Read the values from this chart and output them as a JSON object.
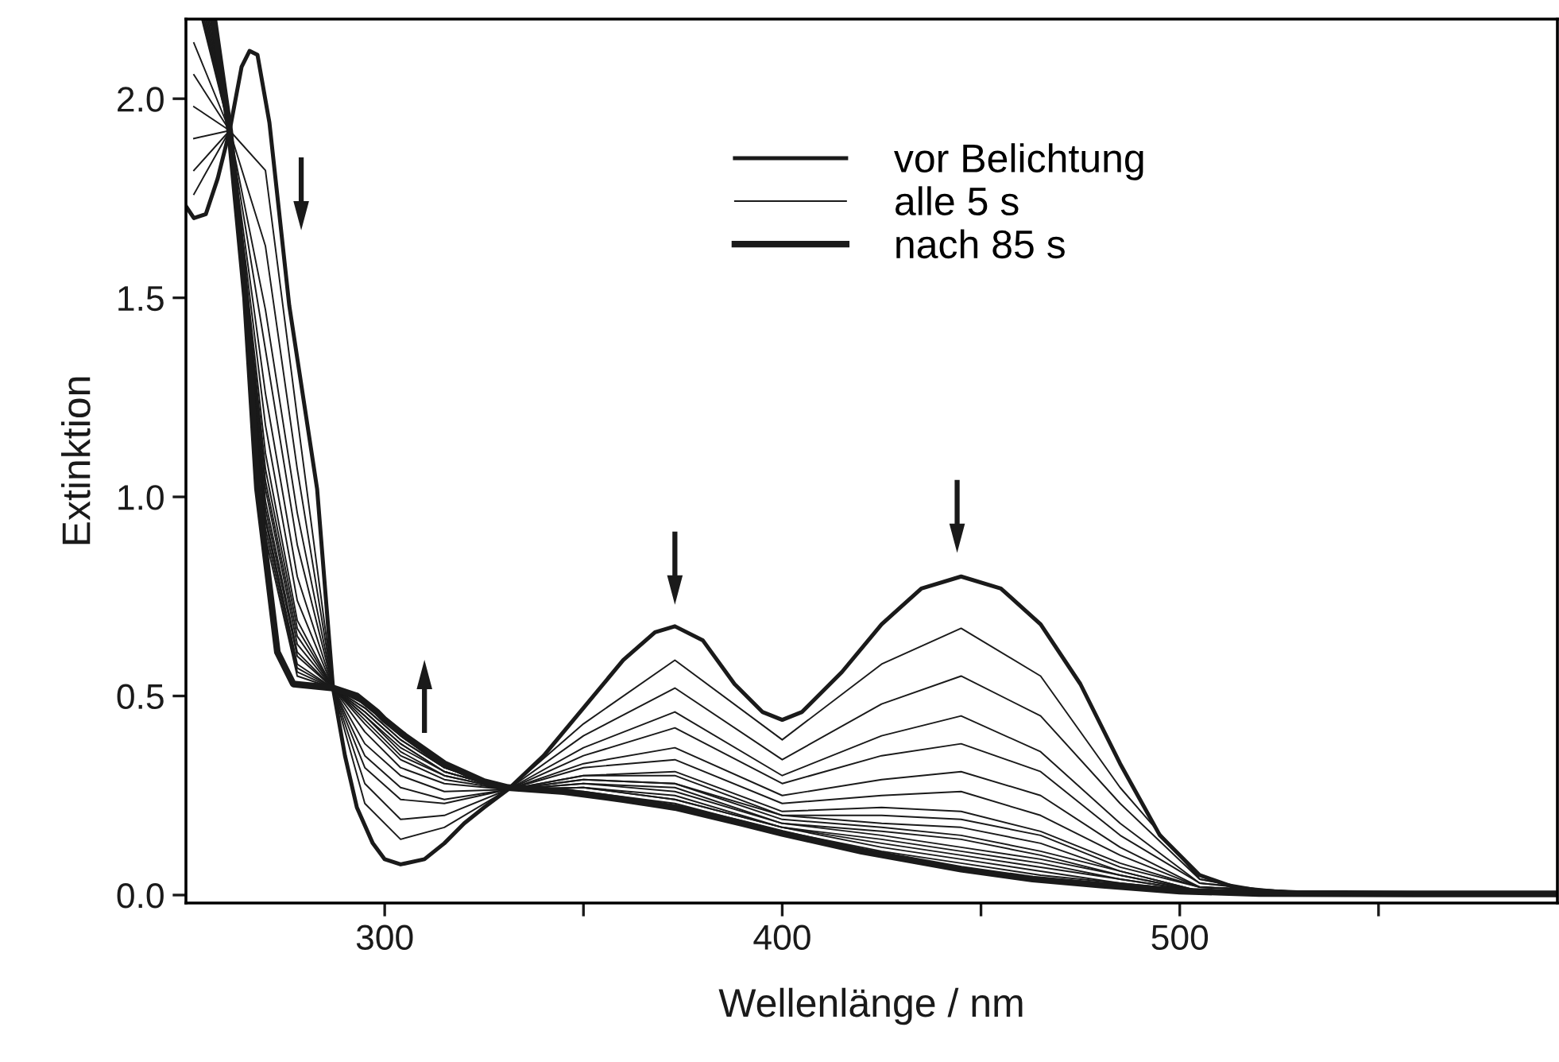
{
  "chart_data": {
    "type": "line",
    "xlabel": "Wellenlänge / nm",
    "ylabel": "Extinktion",
    "xlim": [
      250,
      595
    ],
    "ylim": [
      -0.02,
      2.2
    ],
    "xticks": [
      300,
      {
        "value": 350,
        "label": null
      },
      400,
      {
        "value": 450,
        "label": null
      },
      500,
      {
        "value": 550,
        "label": null
      }
    ],
    "yticks": [
      {
        "value": 0,
        "label": "0.0"
      },
      0.5,
      {
        "value": 1,
        "label": "1.0"
      },
      1.5,
      {
        "value": 2,
        "label": "2.0"
      }
    ],
    "grid": false,
    "legend": "top",
    "marker": "none",
    "line_style": "solid",
    "series": [
      {
        "name": "vor Belichtung",
        "color": "#1a1a1a",
        "x": [
          250,
          252,
          255,
          258,
          261,
          264,
          266,
          268,
          271,
          276,
          283,
          287,
          290,
          293,
          297,
          300,
          304,
          310,
          315,
          320,
          325,
          331,
          340,
          350,
          360,
          368,
          373,
          380,
          388,
          395,
          400,
          405,
          415,
          425,
          435,
          445,
          455,
          465,
          475,
          485,
          495,
          505,
          515,
          530,
          560,
          595
        ],
        "values": [
          1.73,
          1.7,
          1.71,
          1.8,
          1.92,
          2.08,
          2.12,
          2.11,
          1.94,
          1.48,
          1.02,
          0.52,
          0.35,
          0.22,
          0.13,
          0.09,
          0.077,
          0.09,
          0.13,
          0.18,
          0.22,
          0.265,
          0.35,
          0.47,
          0.59,
          0.66,
          0.675,
          0.64,
          0.53,
          0.46,
          0.44,
          0.46,
          0.56,
          0.68,
          0.77,
          0.8,
          0.77,
          0.68,
          0.53,
          0.33,
          0.15,
          0.05,
          0.015,
          0.005,
          0.003,
          0.003
        ]
      },
      {
        "name": "alle 5 s",
        "color": "#1a1a1a",
        "x": [
          252,
          261,
          270,
          278,
          287,
          295,
          304,
          315,
          331,
          350,
          373,
          400,
          425,
          445,
          465,
          485,
          505,
          523
        ],
        "values": [
          1.76,
          1.92,
          1.82,
          1.2,
          0.52,
          0.23,
          0.14,
          0.17,
          0.265,
          0.43,
          0.59,
          0.39,
          0.58,
          0.67,
          0.55,
          0.27,
          0.04,
          0.004
        ]
      },
      {
        "color": "#1a1a1a",
        "x": [
          252,
          261,
          270,
          278,
          287,
          295,
          304,
          315,
          331,
          350,
          373,
          400,
          425,
          445,
          465,
          485,
          505,
          526
        ],
        "values": [
          1.82,
          1.92,
          1.63,
          1.07,
          0.52,
          0.28,
          0.19,
          0.2,
          0.265,
          0.4,
          0.52,
          0.34,
          0.48,
          0.55,
          0.45,
          0.23,
          0.04,
          0.004
        ]
      },
      {
        "color": "#1a1a1a",
        "x": [
          252,
          261,
          270,
          278,
          287,
          295,
          304,
          315,
          331,
          350,
          373,
          400,
          425,
          445,
          465,
          485,
          505,
          529
        ],
        "values": [
          1.9,
          1.92,
          1.47,
          0.96,
          0.52,
          0.32,
          0.24,
          0.23,
          0.265,
          0.37,
          0.46,
          0.3,
          0.4,
          0.45,
          0.36,
          0.18,
          0.03,
          0.004
        ]
      },
      {
        "color": "#1a1a1a",
        "x": [
          252,
          261,
          270,
          278,
          287,
          295,
          304,
          315,
          331,
          350,
          373,
          400,
          425,
          445,
          465,
          485,
          505,
          532
        ],
        "values": [
          1.98,
          1.92,
          1.37,
          0.88,
          0.52,
          0.35,
          0.27,
          0.24,
          0.265,
          0.35,
          0.42,
          0.28,
          0.35,
          0.38,
          0.31,
          0.15,
          0.03,
          0.004
        ]
      },
      {
        "color": "#1a1a1a",
        "x": [
          252,
          261,
          270,
          278,
          287,
          295,
          304,
          315,
          331,
          350,
          373,
          400,
          425,
          445,
          465,
          485,
          505,
          535
        ],
        "values": [
          2.06,
          1.92,
          1.26,
          0.8,
          0.52,
          0.38,
          0.3,
          0.26,
          0.265,
          0.33,
          0.37,
          0.25,
          0.29,
          0.31,
          0.25,
          0.12,
          0.02,
          0.004
        ]
      },
      {
        "color": "#1a1a1a",
        "x": [
          252,
          261,
          270,
          278,
          287,
          295,
          304,
          315,
          331,
          350,
          373,
          400,
          425,
          445,
          465,
          485,
          505,
          538
        ],
        "values": [
          2.14,
          1.92,
          1.18,
          0.74,
          0.52,
          0.41,
          0.32,
          0.28,
          0.265,
          0.32,
          0.34,
          0.23,
          0.25,
          0.26,
          0.2,
          0.1,
          0.02,
          0.004
        ]
      },
      {
        "color": "#1a1a1a",
        "x": [
          254.0,
          261,
          270,
          278,
          287,
          295,
          304,
          315,
          331,
          350,
          373,
          400,
          425,
          445,
          465,
          485,
          505,
          541
        ],
        "values": [
          2.2,
          1.92,
          1.11,
          0.69,
          0.52,
          0.43,
          0.34,
          0.29,
          0.265,
          0.3,
          0.31,
          0.21,
          0.22,
          0.21,
          0.16,
          0.08,
          0.02,
          0.004
        ]
      },
      {
        "color": "#1a1a1a",
        "x": [
          254.3,
          261,
          270,
          278,
          287,
          295,
          304,
          315,
          331,
          350,
          373,
          400,
          425,
          445,
          465,
          485,
          505,
          544
        ],
        "values": [
          2.2,
          1.92,
          1.07,
          0.67,
          0.52,
          0.44,
          0.35,
          0.3,
          0.265,
          0.3,
          0.3,
          0.2,
          0.2,
          0.19,
          0.15,
          0.07,
          0.02,
          0.004
        ]
      },
      {
        "color": "#1a1a1a",
        "x": [
          254.6,
          261,
          270,
          278,
          287,
          295,
          304,
          315,
          331,
          350,
          373,
          400,
          425,
          445,
          465,
          485,
          505,
          547
        ],
        "values": [
          2.2,
          1.92,
          1.04,
          0.65,
          0.52,
          0.45,
          0.36,
          0.3,
          0.265,
          0.29,
          0.28,
          0.2,
          0.18,
          0.17,
          0.13,
          0.06,
          0.01,
          0.004
        ]
      },
      {
        "color": "#1a1a1a",
        "x": [
          254.9,
          261,
          270,
          278,
          287,
          295,
          304,
          315,
          331,
          350,
          373,
          400,
          425,
          445,
          465,
          485,
          505,
          550
        ],
        "values": [
          2.2,
          1.92,
          1.02,
          0.63,
          0.52,
          0.45,
          0.37,
          0.31,
          0.265,
          0.29,
          0.28,
          0.19,
          0.17,
          0.15,
          0.11,
          0.06,
          0.01,
          0.004
        ]
      },
      {
        "color": "#1a1a1a",
        "x": [
          255.2,
          261,
          270,
          278,
          287,
          295,
          304,
          315,
          331,
          350,
          373,
          400,
          425,
          445,
          465,
          485,
          505,
          553
        ],
        "values": [
          2.2,
          1.92,
          0.99,
          0.61,
          0.52,
          0.46,
          0.38,
          0.31,
          0.265,
          0.28,
          0.27,
          0.18,
          0.16,
          0.14,
          0.1,
          0.05,
          0.01,
          0.004
        ]
      },
      {
        "color": "#1a1a1a",
        "x": [
          255.5,
          261,
          270,
          278,
          287,
          295,
          304,
          315,
          331,
          350,
          373,
          400,
          425,
          445,
          465,
          485,
          505,
          556
        ],
        "values": [
          2.2,
          1.92,
          0.97,
          0.6,
          0.52,
          0.46,
          0.38,
          0.31,
          0.265,
          0.28,
          0.26,
          0.18,
          0.15,
          0.12,
          0.09,
          0.05,
          0.01,
          0.004
        ]
      },
      {
        "color": "#1a1a1a",
        "x": [
          255.8,
          261,
          270,
          278,
          287,
          295,
          304,
          315,
          331,
          350,
          373,
          400,
          425,
          445,
          465,
          485,
          505,
          559
        ],
        "values": [
          2.2,
          1.92,
          0.95,
          0.58,
          0.52,
          0.47,
          0.39,
          0.32,
          0.265,
          0.27,
          0.25,
          0.17,
          0.14,
          0.11,
          0.08,
          0.04,
          0.01,
          0.004
        ]
      },
      {
        "color": "#1a1a1a",
        "x": [
          256.1,
          261,
          270,
          278,
          287,
          295,
          304,
          315,
          331,
          350,
          373,
          400,
          425,
          445,
          465,
          485,
          505,
          562
        ],
        "values": [
          2.2,
          1.92,
          0.94,
          0.57,
          0.52,
          0.47,
          0.39,
          0.32,
          0.265,
          0.27,
          0.24,
          0.17,
          0.13,
          0.1,
          0.07,
          0.04,
          0.01,
          0.004
        ]
      },
      {
        "color": "#1a1a1a",
        "x": [
          256.4,
          261,
          270,
          278,
          287,
          295,
          304,
          315,
          331,
          350,
          373,
          400,
          425,
          445,
          465,
          485,
          505,
          565
        ],
        "values": [
          2.2,
          1.92,
          0.92,
          0.56,
          0.52,
          0.48,
          0.4,
          0.32,
          0.265,
          0.27,
          0.24,
          0.17,
          0.12,
          0.09,
          0.06,
          0.03,
          0.01,
          0.004
        ]
      },
      {
        "color": "#1a1a1a",
        "x": [
          256.7,
          261,
          270,
          278,
          287,
          295,
          304,
          315,
          331,
          350,
          373,
          400,
          425,
          445,
          465,
          485,
          505,
          568
        ],
        "values": [
          2.2,
          1.92,
          0.9,
          0.55,
          0.52,
          0.48,
          0.4,
          0.33,
          0.265,
          0.26,
          0.23,
          0.16,
          0.11,
          0.08,
          0.05,
          0.03,
          0.01,
          0.004
        ]
      },
      {
        "name": "nach 85 s",
        "color": "#1a1a1a",
        "x": [
          257,
          261,
          265,
          268,
          273,
          277,
          282,
          287,
          293,
          298,
          300,
          305,
          315,
          325,
          331,
          345,
          360,
          373,
          390,
          400,
          420,
          445,
          463,
          480,
          500,
          520,
          560,
          595
        ],
        "values": [
          2.2,
          1.92,
          1.5,
          1.02,
          0.61,
          0.53,
          0.525,
          0.52,
          0.5,
          0.46,
          0.44,
          0.4,
          0.33,
          0.285,
          0.27,
          0.26,
          0.24,
          0.22,
          0.18,
          0.155,
          0.11,
          0.065,
          0.04,
          0.025,
          0.01,
          0.004,
          0.003,
          0.003
        ]
      }
    ]
  }
}
